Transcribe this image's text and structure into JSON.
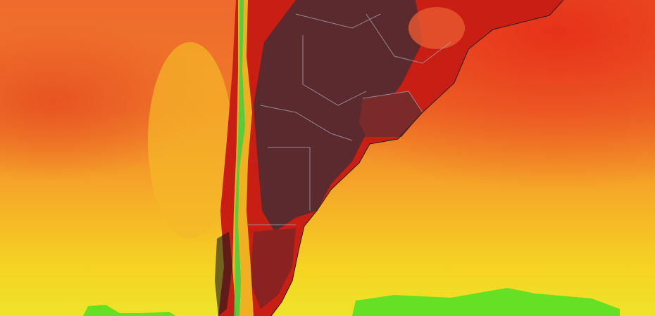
{
  "map": {
    "colors": {
      "ocean_north": "#ee6a2c",
      "ocean_mid": "#f59a28",
      "ocean_south": "#f5dc22",
      "cold_band": "#66e024",
      "land_hot": "#c81e14",
      "land_hottest": "#5a2a2e",
      "andes_cool": "#f0b020",
      "andes_green": "#40d040",
      "borders": "#a0a0b0"
    }
  }
}
